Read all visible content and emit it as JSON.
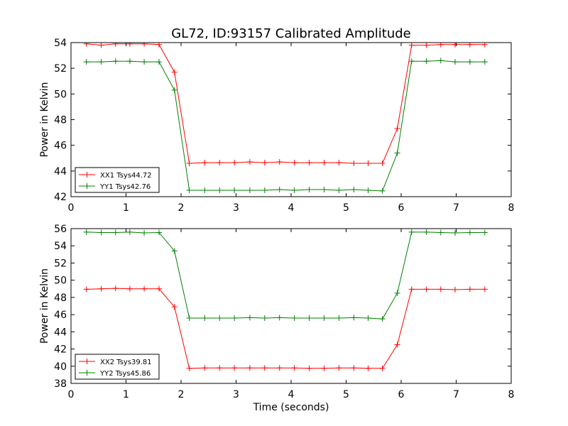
{
  "title": "GL72, ID:93157 Calibrated Amplitude",
  "chart_data": [
    {
      "type": "line",
      "title": "GL72, ID:93157 Calibrated Amplitude",
      "xlabel": "",
      "ylabel": "Power in Kelvin",
      "xlim": [
        0,
        8
      ],
      "ylim": [
        42,
        54
      ],
      "xticks": [
        "0",
        "1",
        "2",
        "3",
        "4",
        "5",
        "6",
        "7",
        "8"
      ],
      "yticks": [
        "42",
        "44",
        "46",
        "48",
        "50",
        "52",
        "54"
      ],
      "grid": false,
      "legend_position": "lower-left",
      "x": [
        0.28,
        0.55,
        0.81,
        1.07,
        1.33,
        1.6,
        1.88,
        2.15,
        2.43,
        2.7,
        2.97,
        3.25,
        3.52,
        3.79,
        4.06,
        4.33,
        4.6,
        4.87,
        5.14,
        5.4,
        5.66,
        5.93,
        6.19,
        6.46,
        6.72,
        6.98,
        7.25,
        7.52
      ],
      "series": [
        {
          "name": "XX1 Tsys44.72",
          "color": "#ff0000",
          "values": [
            53.9,
            53.8,
            53.9,
            53.9,
            53.9,
            53.85,
            51.7,
            44.6,
            44.65,
            44.65,
            44.65,
            44.7,
            44.65,
            44.7,
            44.65,
            44.65,
            44.65,
            44.65,
            44.6,
            44.6,
            44.6,
            47.3,
            53.8,
            53.8,
            53.85,
            53.85,
            53.85,
            53.85
          ]
        },
        {
          "name": "YY1 Tsys42.76",
          "color": "#008000",
          "values": [
            52.5,
            52.5,
            52.55,
            52.55,
            52.5,
            52.5,
            50.3,
            42.5,
            42.5,
            42.5,
            42.5,
            42.5,
            42.5,
            42.55,
            42.5,
            42.55,
            42.55,
            42.5,
            42.55,
            42.5,
            42.45,
            45.4,
            52.55,
            52.55,
            52.6,
            52.5,
            52.5,
            52.5
          ]
        }
      ]
    },
    {
      "type": "line",
      "title": "",
      "xlabel": "Time (seconds)",
      "ylabel": "Power in Kelvin",
      "xlim": [
        0,
        8
      ],
      "ylim": [
        38,
        56
      ],
      "xticks": [
        "0",
        "1",
        "2",
        "3",
        "4",
        "5",
        "6",
        "7",
        "8"
      ],
      "yticks": [
        "38",
        "40",
        "42",
        "44",
        "46",
        "48",
        "50",
        "52",
        "54",
        "56"
      ],
      "grid": false,
      "legend_position": "lower-left",
      "x": [
        0.28,
        0.55,
        0.81,
        1.07,
        1.33,
        1.6,
        1.88,
        2.15,
        2.43,
        2.7,
        2.97,
        3.25,
        3.52,
        3.79,
        4.06,
        4.33,
        4.6,
        4.87,
        5.14,
        5.4,
        5.66,
        5.93,
        6.19,
        6.46,
        6.72,
        6.98,
        7.25,
        7.52
      ],
      "series": [
        {
          "name": "XX2 Tsys39.81",
          "color": "#ff0000",
          "values": [
            48.95,
            49.0,
            49.05,
            49.0,
            49.0,
            49.0,
            46.9,
            39.75,
            39.8,
            39.8,
            39.8,
            39.8,
            39.8,
            39.8,
            39.8,
            39.75,
            39.75,
            39.8,
            39.8,
            39.75,
            39.75,
            42.5,
            48.95,
            48.95,
            48.95,
            48.9,
            48.95,
            48.95
          ]
        },
        {
          "name": "YY2 Tsys45.86",
          "color": "#008000",
          "values": [
            55.6,
            55.55,
            55.55,
            55.6,
            55.5,
            55.55,
            53.4,
            45.6,
            45.6,
            45.6,
            45.6,
            45.65,
            45.6,
            45.65,
            45.6,
            45.6,
            45.6,
            45.6,
            45.65,
            45.6,
            45.5,
            48.5,
            55.6,
            55.6,
            55.55,
            55.5,
            55.55,
            55.55
          ]
        }
      ]
    }
  ]
}
